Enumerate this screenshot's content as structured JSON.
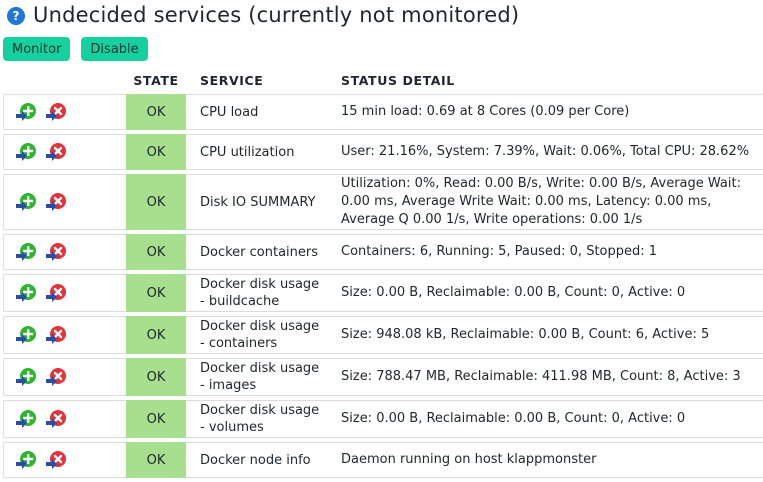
{
  "header": {
    "help_icon": "help-icon",
    "title": "Undecided services (currently not monitored)"
  },
  "toolbar": {
    "monitor_label": "Monitor",
    "disable_label": "Disable"
  },
  "columns": {
    "actions": "",
    "state": "STATE",
    "service": "SERVICE",
    "detail": "STATUS DETAIL"
  },
  "colors": {
    "state_ok": "#a7df8e",
    "button": "#15d1a0",
    "monitor_icon": "#2db52d",
    "disable_icon": "#e3333a",
    "arrow": "#2b4ea5"
  },
  "rows": [
    {
      "state": "OK",
      "service": "CPU load",
      "detail": "15 min load: 0.69 at 8 Cores (0.09 per Core)"
    },
    {
      "state": "OK",
      "service": "CPU utilization",
      "detail": "User: 21.16%, System: 7.39%, Wait: 0.06%, Total CPU: 28.62%"
    },
    {
      "state": "OK",
      "service": "Disk IO SUMMARY",
      "detail": "Utilization: 0%, Read: 0.00 B/s, Write: 0.00 B/s, Average Wait: 0.00 ms, Average Write Wait: 0.00 ms, Latency: 0.00 ms, Average Q 0.00 1/s, Write operations: 0.00 1/s"
    },
    {
      "state": "OK",
      "service": "Docker containers",
      "detail": "Containers: 6, Running: 5, Paused: 0, Stopped: 1"
    },
    {
      "state": "OK",
      "service": "Docker disk usage - buildcache",
      "detail": "Size: 0.00 B, Reclaimable: 0.00 B, Count: 0, Active: 0"
    },
    {
      "state": "OK",
      "service": "Docker disk usage - containers",
      "detail": "Size: 948.08 kB, Reclaimable: 0.00 B, Count: 6, Active: 5"
    },
    {
      "state": "OK",
      "service": "Docker disk usage - images",
      "detail": "Size: 788.47 MB, Reclaimable: 411.98 MB, Count: 8, Active: 3"
    },
    {
      "state": "OK",
      "service": "Docker disk usage - volumes",
      "detail": "Size: 0.00 B, Reclaimable: 0.00 B, Count: 0, Active: 0"
    },
    {
      "state": "OK",
      "service": "Docker node info",
      "detail": "Daemon running on host klappmonster"
    }
  ]
}
